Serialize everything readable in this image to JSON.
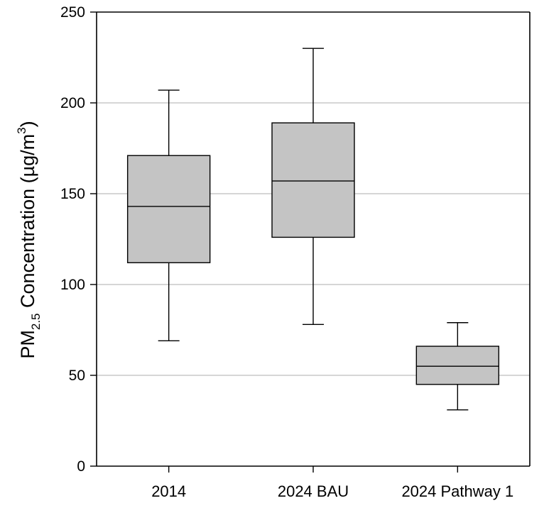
{
  "chart_data": {
    "type": "box",
    "categories": [
      "2014",
      "2024 BAU",
      "2024 Pathway 1"
    ],
    "boxes": [
      {
        "category": "2014",
        "whisker_low": 69,
        "q1": 112,
        "median": 143,
        "q3": 171,
        "whisker_high": 207
      },
      {
        "category": "2024 BAU",
        "whisker_low": 78,
        "q1": 126,
        "median": 157,
        "q3": 189,
        "whisker_high": 230
      },
      {
        "category": "2024 Pathway 1",
        "whisker_low": 31,
        "q1": 45,
        "median": 55,
        "q3": 66,
        "whisker_high": 79
      }
    ],
    "ylabel": {
      "main": "PM",
      "subscript": "2.5",
      "text": " Concentration (µg/m",
      "superscript": "3",
      "close": ")"
    },
    "ylim": [
      0,
      250
    ],
    "yticks": [
      "0",
      "50",
      "100",
      "150",
      "200",
      "250"
    ],
    "grid": true,
    "colors": {
      "box_fill": "#c4c4c4",
      "box_stroke": "#000000",
      "grid": "#bdbdbd",
      "axis": "#000000"
    }
  }
}
